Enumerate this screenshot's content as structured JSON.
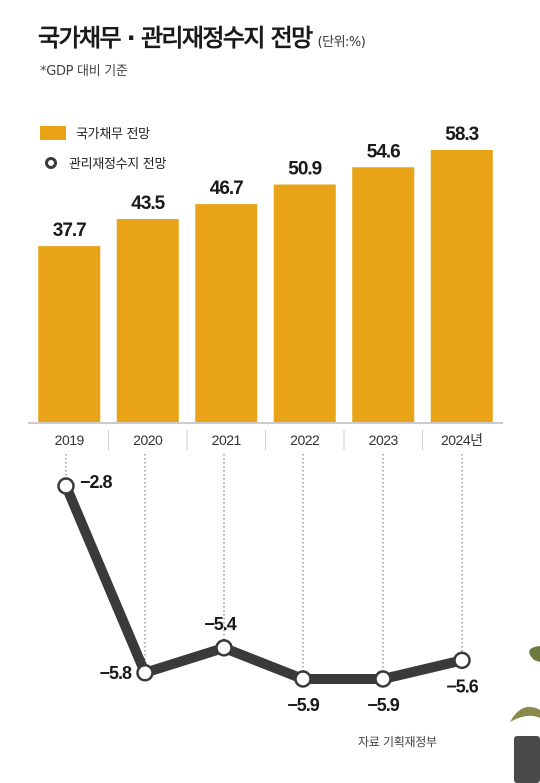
{
  "title": "국가채무 · 관리재정수지 전망",
  "unit": "(단위:%)",
  "subtitle": "*GDP 대비 기준",
  "source": "자료 기획재정부",
  "colors": {
    "bar": "#e8a317",
    "line": "#3a3a3a",
    "axis": "#999999"
  },
  "chart_data": [
    {
      "type": "bar",
      "categories": [
        "2019",
        "2020",
        "2021",
        "2022",
        "2023",
        "2024년"
      ],
      "series": [
        {
          "name": "국가채무 전망",
          "values": [
            37.7,
            43.5,
            46.7,
            50.9,
            54.6,
            58.3
          ]
        }
      ],
      "data_labels": [
        "37.7",
        "43.5",
        "46.7",
        "50.9",
        "54.6",
        "58.3"
      ],
      "legend": "top-left"
    },
    {
      "type": "line",
      "categories": [
        "2019",
        "2020",
        "2021",
        "2022",
        "2023",
        "2024년"
      ],
      "series": [
        {
          "name": "관리재정수지 전망",
          "values": [
            -2.8,
            -5.8,
            -5.4,
            -5.9,
            -5.9,
            -5.6
          ]
        }
      ],
      "data_labels": [
        "−2.8",
        "−5.8",
        "−5.4",
        "−5.9",
        "−5.9",
        "−5.6"
      ],
      "legend": "top-left"
    }
  ]
}
